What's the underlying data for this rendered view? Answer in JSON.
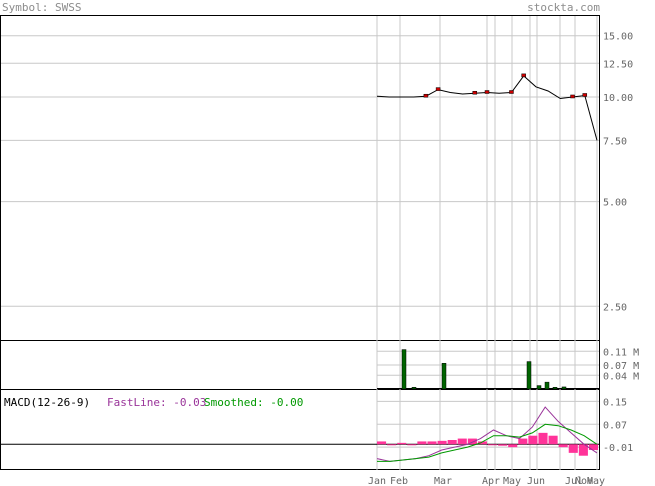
{
  "header": {
    "symbol": "Symbol: SWSS",
    "brand": "stockta.com"
  },
  "colors": {
    "price_line": "#000000",
    "up_candle": "#cc0000",
    "volume": "#006400",
    "macd_fast": "#993399",
    "macd_smooth": "#009900",
    "macd_hist": "#ff3399",
    "grid": "#c8c8c8",
    "frame": "#000000"
  },
  "chart_data": [
    {
      "type": "line",
      "panel": "price",
      "y_scale": "log",
      "y_ticks": [
        "15.00",
        "12.50",
        "10.00",
        "7.50",
        "5.00",
        "2.50"
      ],
      "x_month_labels": [
        "Jan",
        "Feb",
        "Mar",
        "Apr",
        "May",
        "Jun",
        "Jul",
        "Nov",
        "May"
      ],
      "x": [
        "Jan-1",
        "Jan-2",
        "Feb-1",
        "Feb-2",
        "Feb-3",
        "Mar-1",
        "Mar-2",
        "Mar-3",
        "Apr-1",
        "Apr-2",
        "May-1",
        "May-2",
        "Jun-1",
        "Jun-2",
        "Jun-3",
        "Jul-1",
        "Jul-2",
        "Nov-1",
        "May-1b"
      ],
      "values": [
        10.05,
        10.0,
        10.0,
        10.0,
        10.05,
        10.5,
        10.3,
        10.2,
        10.25,
        10.3,
        10.25,
        10.3,
        11.5,
        10.7,
        10.4,
        9.9,
        10.0,
        10.1,
        7.5
      ],
      "ylim": [
        2.0,
        16.0
      ]
    },
    {
      "type": "bar",
      "panel": "volume",
      "y_ticks": [
        "0.11 M",
        "0.07 M",
        "0.04 M"
      ],
      "x": [
        "Jan",
        "Feb-a",
        "Feb-b",
        "Mar",
        "Jun-a",
        "Jun-b",
        "Jun-c",
        "Jun-d",
        "Jul"
      ],
      "values": [
        0.0,
        0.115,
        0.005,
        0.075,
        0.08,
        0.01,
        0.02,
        0.005,
        0.006
      ],
      "ylim": [
        0,
        0.14
      ]
    },
    {
      "type": "line",
      "panel": "macd",
      "title": "MACD(12-26-9)",
      "series": [
        {
          "name": "FastLine",
          "last_label": "FastLine: -0.03"
        },
        {
          "name": "Smoothed",
          "last_label": "Smoothed: -0.00"
        }
      ],
      "y_ticks": [
        "0.15",
        "0.07",
        "-0.01"
      ],
      "fast": [
        -0.05,
        -0.06,
        -0.055,
        -0.05,
        -0.04,
        -0.02,
        -0.01,
        0.0,
        0.02,
        0.05,
        0.03,
        0.02,
        0.06,
        0.13,
        0.08,
        0.04,
        0.0,
        -0.03
      ],
      "smooth": [
        -0.06,
        -0.06,
        -0.055,
        -0.05,
        -0.045,
        -0.03,
        -0.02,
        -0.01,
        0.005,
        0.03,
        0.03,
        0.025,
        0.04,
        0.07,
        0.065,
        0.05,
        0.03,
        0.0
      ],
      "hist": [
        0.01,
        0.0,
        0.005,
        0.0,
        0.01,
        0.01,
        0.012,
        0.015,
        0.02,
        0.02,
        0.01,
        0.0,
        -0.005,
        -0.01,
        0.02,
        0.03,
        0.04,
        0.03,
        -0.01,
        -0.03,
        -0.04,
        -0.02
      ],
      "ylim": [
        -0.09,
        0.19
      ]
    }
  ]
}
